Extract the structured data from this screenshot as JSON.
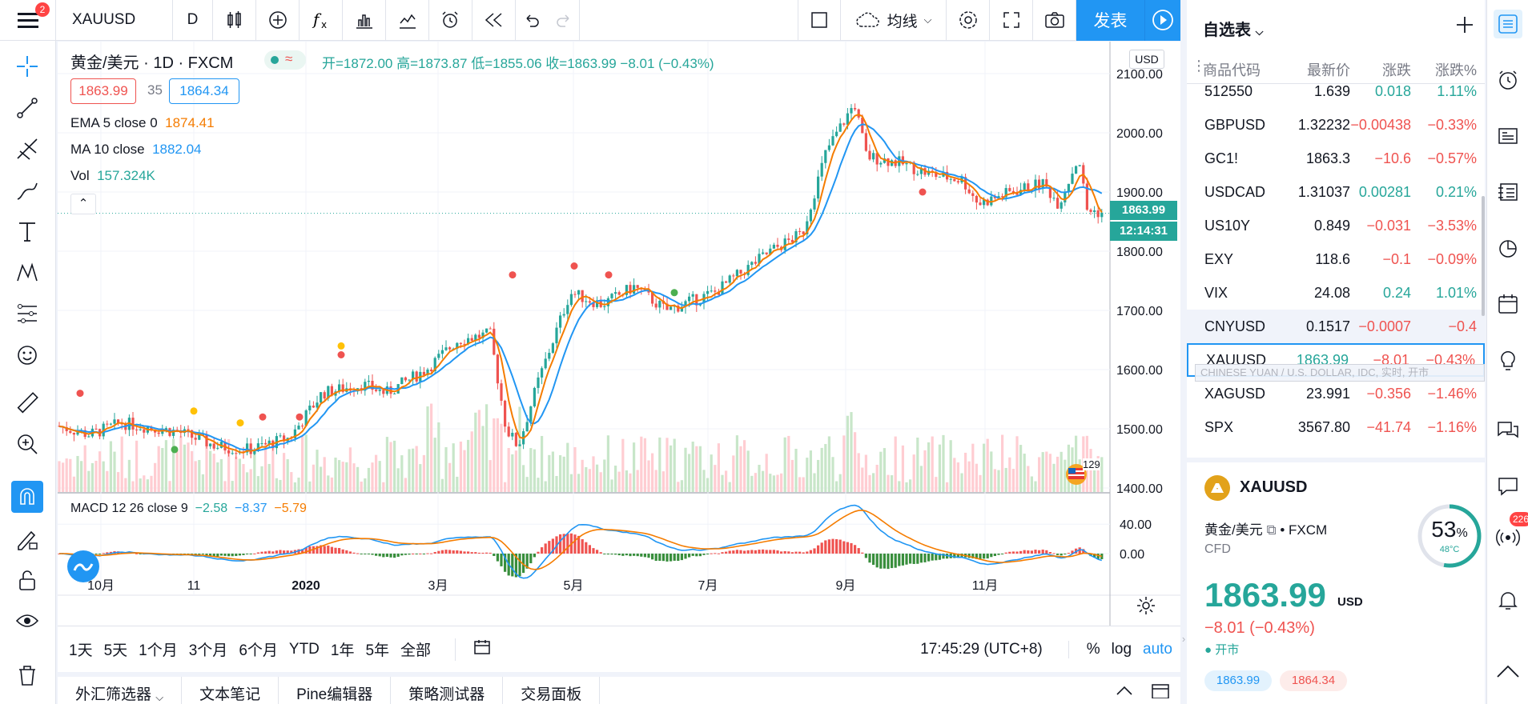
{
  "topbar": {
    "symbol": "XAUUSD",
    "interval": "D",
    "indicator_label": "均线",
    "publish": "发表",
    "menu_badge": "2"
  },
  "legend": {
    "title": "黄金/美元 · 1D · FXCM",
    "ohlc": "开=1872.00 高=1873.87 低=1855.06 收=1863.99 −8.01 (−0.43%)",
    "bid": "1863.99",
    "spread": "35",
    "ask": "1864.34",
    "ema": "EMA 5 close 0",
    "ema_val": "1874.41",
    "ma": "MA 10 close",
    "ma_val": "1882.04",
    "vol": "Vol",
    "vol_val": "157.324K",
    "macd": "MACD 12 26 close 9",
    "macd_v1": "−2.58",
    "macd_v2": "−8.37",
    "macd_v3": "−5.79"
  },
  "axis": {
    "currency": "USD",
    "price_ticks": [
      "2100.00",
      "2000.00",
      "1900.00",
      "1800.00",
      "1700.00",
      "1600.00",
      "1500.00",
      "1400.00"
    ],
    "last_price": "1863.99",
    "countdown": "12:14:31",
    "macd_ticks": [
      "40.00",
      "0.00"
    ],
    "time_ticks": [
      "10月",
      "11",
      "2020",
      "3月",
      "5月",
      "7月",
      "9月",
      "11月"
    ],
    "events_count": "129"
  },
  "bottom": {
    "ranges": [
      "1天",
      "5天",
      "1个月",
      "3个月",
      "6个月",
      "YTD",
      "1年",
      "5年",
      "全部"
    ],
    "clock": "17:45:29 (UTC+8)",
    "pct": "%",
    "log": "log",
    "auto": "auto"
  },
  "tabs": [
    "外汇筛选器",
    "文本笔记",
    "Pine编辑器",
    "策略测试器",
    "交易面板"
  ],
  "watchlist": {
    "title": "自选表",
    "col_symbol": "商品代码",
    "col_last": "最新价",
    "col_chg": "涨跌",
    "col_pct": "涨跌%",
    "rows": [
      {
        "sym": "512550",
        "last": "1.639",
        "chg": "0.018",
        "pct": "1.11%",
        "dir": "up"
      },
      {
        "sym": "GBPUSD",
        "last": "1.32232",
        "chg": "−0.00438",
        "pct": "−0.33%",
        "dir": "dn"
      },
      {
        "sym": "GC1!",
        "last": "1863.3",
        "chg": "−10.6",
        "pct": "−0.57%",
        "dir": "dn"
      },
      {
        "sym": "USDCAD",
        "last": "1.31037",
        "chg": "0.00281",
        "pct": "0.21%",
        "dir": "up"
      },
      {
        "sym": "US10Y",
        "last": "0.849",
        "chg": "−0.031",
        "pct": "−3.53%",
        "dir": "dn"
      },
      {
        "sym": "EXY",
        "last": "118.6",
        "chg": "−0.1",
        "pct": "−0.09%",
        "dir": "dn"
      },
      {
        "sym": "VIX",
        "last": "24.08",
        "chg": "0.24",
        "pct": "1.01%",
        "dir": "up"
      },
      {
        "sym": "CNYUSD",
        "last": "0.1517",
        "chg": "−0.0007",
        "pct": "−0.4",
        "dir": "dn"
      },
      {
        "sym": "XAUUSD",
        "last": "1863.99",
        "chg": "−8.01",
        "pct": "−0.43%",
        "dir": "dn"
      },
      {
        "sym": "XAGUSD",
        "last": "23.991",
        "chg": "−0.356",
        "pct": "−1.46%",
        "dir": "dn"
      },
      {
        "sym": "SPX",
        "last": "3567.80",
        "chg": "−41.74",
        "pct": "−1.16%",
        "dir": "dn"
      }
    ],
    "tooltip": "CHINESE YUAN / U.S. DOLLAR, IDC, 实时, 开市"
  },
  "detail": {
    "symbol": "XAUUSD",
    "name": "黄金/美元",
    "exchange": "FXCM",
    "type": "CFD",
    "price": "1863.99",
    "currency": "USD",
    "change": "−8.01 (−0.43%)",
    "status": "开市",
    "gauge": "53",
    "gauge_unit": "%",
    "gauge_temp": "48°C",
    "bid": "1863.99",
    "ask": "1864.34",
    "badge": "226"
  }
}
